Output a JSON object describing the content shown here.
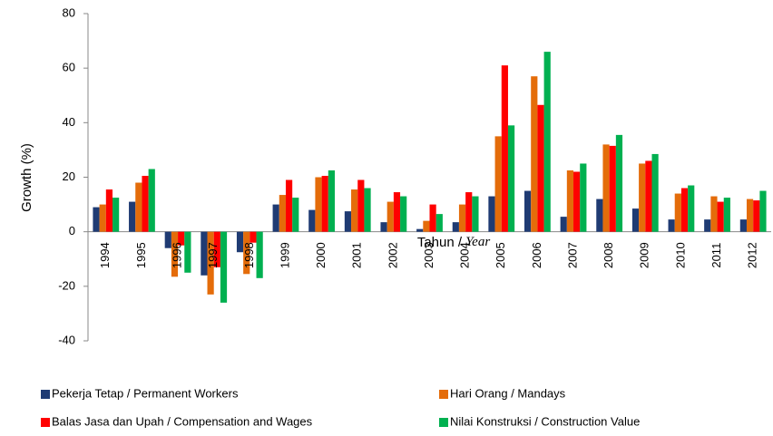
{
  "chart_data": {
    "type": "bar",
    "y_label": "Growth (%)",
    "x_label": [
      "Tahun / ",
      "Year"
    ],
    "categories": [
      "1994",
      "1995",
      "1996",
      "1997",
      "1998",
      "1999",
      "2000",
      "2001",
      "2002",
      "2003",
      "2004",
      "2005",
      "2006",
      "2007",
      "2008",
      "2009",
      "2010",
      "2011",
      "2012"
    ],
    "series": [
      {
        "name": "Pekerja Tetap / Permanent Workers",
        "color": "#1f3b73",
        "values": [
          9,
          11,
          -6,
          -16,
          -7.5,
          10,
          8,
          7.5,
          3.5,
          1,
          3.5,
          13,
          15,
          5.5,
          12,
          8.5,
          4.5,
          4.5,
          4.5
        ]
      },
      {
        "name": "Hari Orang / Mandays",
        "color": "#e46c0a",
        "values": [
          10,
          18,
          -16.5,
          -23,
          -15.5,
          13.5,
          20,
          15.5,
          11,
          4,
          10,
          35,
          57,
          22.5,
          32,
          25,
          14,
          13,
          12
        ]
      },
      {
        "name": "Balas Jasa dan Upah / Compensation and Wages",
        "color": "#ff0000",
        "values": [
          15.5,
          20.5,
          -5,
          -13,
          -4,
          19,
          20.5,
          19,
          14.5,
          10,
          14.5,
          61,
          46.5,
          22,
          31.5,
          26,
          16,
          11,
          11.5
        ]
      },
      {
        "name": "Nilai Konstruksi / Construction Value",
        "color": "#00b050",
        "values": [
          12.5,
          23,
          -15,
          -26,
          -17,
          12.5,
          22.5,
          16,
          13,
          6.5,
          13,
          39,
          66,
          25,
          35.5,
          28.5,
          17,
          12.5,
          15
        ]
      }
    ],
    "ylim": [
      -40,
      80
    ],
    "yticks": [
      -40,
      -20,
      0,
      20,
      40,
      60,
      80
    ],
    "grid": false
  }
}
